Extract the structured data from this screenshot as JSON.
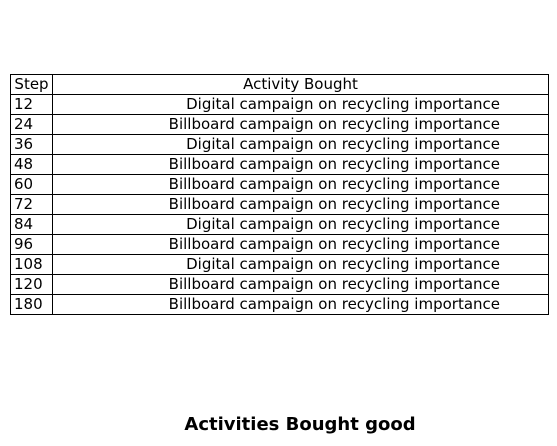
{
  "chart_data": {
    "type": "table",
    "title": "Activities Bought good",
    "columns": [
      "Step",
      "Activity Bought"
    ],
    "rows": [
      [
        "12",
        "Digital campaign on recycling importance"
      ],
      [
        "24",
        "Billboard campaign on recycling importance"
      ],
      [
        "36",
        "Digital campaign on recycling importance"
      ],
      [
        "48",
        "Billboard campaign on recycling importance"
      ],
      [
        "60",
        "Billboard campaign on recycling importance"
      ],
      [
        "72",
        "Billboard campaign on recycling importance"
      ],
      [
        "84",
        "Digital campaign on recycling importance"
      ],
      [
        "96",
        "Billboard campaign on recycling importance"
      ],
      [
        "108",
        "Digital campaign on recycling importance"
      ],
      [
        "120",
        "Billboard campaign on recycling importance"
      ],
      [
        "180",
        "Billboard campaign on recycling importance"
      ]
    ]
  }
}
